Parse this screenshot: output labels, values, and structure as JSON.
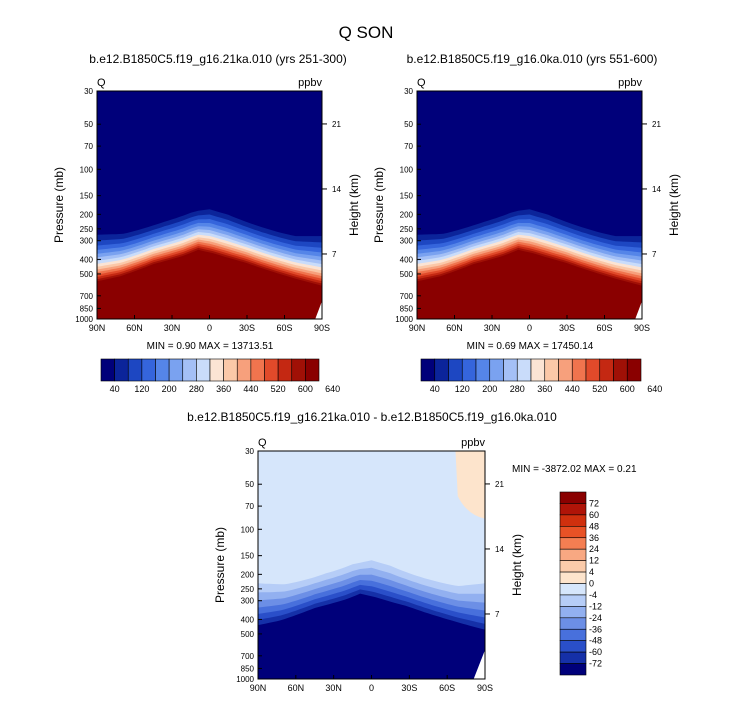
{
  "page_title": "Q SON",
  "chart_data": [
    {
      "type": "heatmap",
      "title": "b.e12.B1850C5.f19_g16.21ka.010 (yrs 251-300)",
      "left_label": "Q",
      "units": "ppbv",
      "ylabel": "Pressure (mb)",
      "ylabel_right": "Height (km)",
      "x_ticks": [
        "90N",
        "60N",
        "30N",
        "0",
        "30S",
        "60S",
        "90S"
      ],
      "y_ticks": [
        "30",
        "50",
        "70",
        "100",
        "150",
        "200",
        "250",
        "300",
        "400",
        "500",
        "700",
        "850",
        "1000"
      ],
      "y_right_ticks": [
        "21",
        "14",
        "7"
      ],
      "min_max": "MIN =   0.90   MAX = 13713.51",
      "colorbar_labels": [
        "40",
        "120",
        "200",
        "280",
        "360",
        "440",
        "520",
        "600",
        "640"
      ],
      "colorbar_colors": [
        "#00007a",
        "#0b249a",
        "#1d47c2",
        "#3565dc",
        "#5585e8",
        "#7aa2f0",
        "#a4c0f6",
        "#c9dcfa",
        "#fbe4d4",
        "#fbc8a8",
        "#f7a07c",
        "#f0744e",
        "#e14a2a",
        "#c42812",
        "#a01006",
        "#8a0000"
      ]
    },
    {
      "type": "heatmap",
      "title": "b.e12.B1850C5.f19_g16.0ka.010 (yrs 551-600)",
      "left_label": "Q",
      "units": "ppbv",
      "ylabel": "Pressure (mb)",
      "ylabel_right": "Height (km)",
      "x_ticks": [
        "90N",
        "60N",
        "30N",
        "0",
        "30S",
        "60S",
        "90S"
      ],
      "y_ticks": [
        "30",
        "50",
        "70",
        "100",
        "150",
        "200",
        "250",
        "300",
        "400",
        "500",
        "700",
        "850",
        "1000"
      ],
      "y_right_ticks": [
        "21",
        "14",
        "7"
      ],
      "min_max": "MIN =   0.69   MAX = 17450.14",
      "colorbar_labels": [
        "40",
        "120",
        "200",
        "280",
        "360",
        "440",
        "520",
        "600",
        "640"
      ],
      "colorbar_colors": [
        "#00007a",
        "#0b249a",
        "#1d47c2",
        "#3565dc",
        "#5585e8",
        "#7aa2f0",
        "#a4c0f6",
        "#c9dcfa",
        "#fbe4d4",
        "#fbc8a8",
        "#f7a07c",
        "#f0744e",
        "#e14a2a",
        "#c42812",
        "#a01006",
        "#8a0000"
      ]
    },
    {
      "type": "heatmap",
      "title": "b.e12.B1850C5.f19_g16.21ka.010 - b.e12.B1850C5.f19_g16.0ka.010",
      "left_label": "Q",
      "units": "ppbv",
      "ylabel": "Pressure (mb)",
      "ylabel_right": "Height (km)",
      "x_ticks": [
        "90N",
        "60N",
        "30N",
        "0",
        "30S",
        "60S",
        "90S"
      ],
      "y_ticks": [
        "30",
        "50",
        "70",
        "100",
        "150",
        "200",
        "250",
        "300",
        "400",
        "500",
        "700",
        "850",
        "1000"
      ],
      "y_right_ticks": [
        "21",
        "14",
        "7"
      ],
      "min_max": "MIN = -3872.02  MAX =   0.21",
      "colorbar_labels": [
        "72",
        "60",
        "48",
        "36",
        "24",
        "12",
        "4",
        "0",
        "-4",
        "-12",
        "-24",
        "-36",
        "-48",
        "-60",
        "-72"
      ],
      "colorbar_colors": [
        "#8a0000",
        "#b01408",
        "#d0300e",
        "#e85226",
        "#f47e52",
        "#f8a882",
        "#fbcbaa",
        "#fde4cc",
        "#d6e6fb",
        "#b6cdf7",
        "#92b0f0",
        "#6c8fe6",
        "#4870dc",
        "#2a4fc9",
        "#1530a8",
        "#00007a"
      ]
    }
  ]
}
